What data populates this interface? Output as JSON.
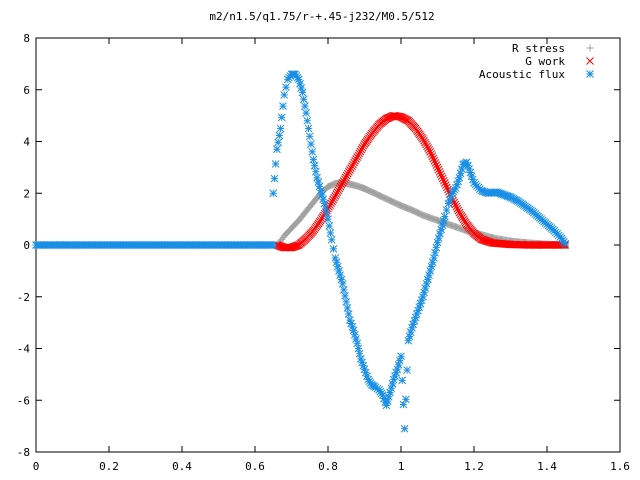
{
  "chart_data": {
    "type": "scatter",
    "title": "m2/n1.5/q1.75/r-+.45-j232/M0.5/512",
    "xlabel": "",
    "ylabel": "",
    "xlim": [
      0,
      1.6
    ],
    "ylim": [
      -8,
      8
    ],
    "x_ticks": [
      0,
      0.2,
      0.4,
      0.6,
      0.8,
      1,
      1.2,
      1.4,
      1.6
    ],
    "x_tick_labels": [
      "0",
      "0.2",
      "0.4",
      "0.6",
      "0.8",
      "1",
      "1.2",
      "1.4",
      "1.6"
    ],
    "y_ticks": [
      -8,
      -6,
      -4,
      -2,
      0,
      2,
      4,
      6,
      8
    ],
    "y_tick_labels": [
      "-8",
      "-6",
      "-4",
      "-2",
      "0",
      "2",
      "4",
      "6",
      "8"
    ],
    "grid": false,
    "legend_position": "top-right",
    "series": [
      {
        "name": "R stress",
        "marker": "plus",
        "color": "#a0a0a0",
        "points": [
          [
            0.66,
            0.0
          ],
          [
            0.67,
            0.15
          ],
          [
            0.68,
            0.35
          ],
          [
            0.7,
            0.65
          ],
          [
            0.72,
            0.95
          ],
          [
            0.74,
            1.3
          ],
          [
            0.76,
            1.65
          ],
          [
            0.78,
            2.0
          ],
          [
            0.8,
            2.25
          ],
          [
            0.82,
            2.38
          ],
          [
            0.84,
            2.4
          ],
          [
            0.86,
            2.35
          ],
          [
            0.88,
            2.28
          ],
          [
            0.9,
            2.18
          ],
          [
            0.92,
            2.05
          ],
          [
            0.95,
            1.85
          ],
          [
            0.98,
            1.65
          ],
          [
            1.0,
            1.52
          ],
          [
            1.03,
            1.35
          ],
          [
            1.06,
            1.15
          ],
          [
            1.1,
            0.95
          ],
          [
            1.14,
            0.75
          ],
          [
            1.18,
            0.55
          ],
          [
            1.22,
            0.4
          ],
          [
            1.26,
            0.25
          ],
          [
            1.3,
            0.15
          ],
          [
            1.35,
            0.08
          ],
          [
            1.4,
            0.03
          ],
          [
            1.45,
            0.0
          ]
        ]
      },
      {
        "name": "G work",
        "marker": "cross",
        "color": "#ff0000",
        "points": [
          [
            0.66,
            0.0
          ],
          [
            0.68,
            -0.1
          ],
          [
            0.7,
            -0.1
          ],
          [
            0.72,
            0.0
          ],
          [
            0.74,
            0.25
          ],
          [
            0.76,
            0.55
          ],
          [
            0.78,
            0.95
          ],
          [
            0.8,
            1.4
          ],
          [
            0.82,
            1.9
          ],
          [
            0.84,
            2.4
          ],
          [
            0.86,
            2.9
          ],
          [
            0.88,
            3.4
          ],
          [
            0.9,
            3.9
          ],
          [
            0.92,
            4.3
          ],
          [
            0.94,
            4.65
          ],
          [
            0.96,
            4.88
          ],
          [
            0.98,
            5.0
          ],
          [
            1.0,
            4.95
          ],
          [
            1.02,
            4.8
          ],
          [
            1.04,
            4.5
          ],
          [
            1.06,
            4.1
          ],
          [
            1.08,
            3.6
          ],
          [
            1.1,
            3.0
          ],
          [
            1.12,
            2.4
          ],
          [
            1.14,
            1.8
          ],
          [
            1.16,
            1.25
          ],
          [
            1.18,
            0.8
          ],
          [
            1.2,
            0.45
          ],
          [
            1.22,
            0.22
          ],
          [
            1.25,
            0.08
          ],
          [
            1.3,
            0.02
          ],
          [
            1.35,
            0.0
          ],
          [
            1.4,
            0.0
          ],
          [
            1.45,
            0.0
          ]
        ]
      },
      {
        "name": "Acoustic flux",
        "marker": "star",
        "color": "#1a8fe6",
        "points": [
          [
            0.0,
            0.0
          ],
          [
            0.1,
            0.0
          ],
          [
            0.2,
            0.0
          ],
          [
            0.3,
            0.0
          ],
          [
            0.4,
            0.0
          ],
          [
            0.5,
            0.0
          ],
          [
            0.6,
            0.0
          ],
          [
            0.65,
            0.0
          ],
          [
            0.65,
            2.0
          ],
          [
            0.66,
            3.7
          ],
          [
            0.67,
            4.5
          ],
          [
            0.68,
            5.8
          ],
          [
            0.69,
            6.4
          ],
          [
            0.7,
            6.6
          ],
          [
            0.71,
            6.6
          ],
          [
            0.72,
            6.4
          ],
          [
            0.73,
            5.9
          ],
          [
            0.74,
            5.1
          ],
          [
            0.75,
            4.2
          ],
          [
            0.76,
            3.3
          ],
          [
            0.77,
            2.6
          ],
          [
            0.78,
            2.1
          ],
          [
            0.79,
            1.6
          ],
          [
            0.8,
            1.0
          ],
          [
            0.81,
            0.2
          ],
          [
            0.82,
            -0.5
          ],
          [
            0.83,
            -1.0
          ],
          [
            0.84,
            -1.5
          ],
          [
            0.85,
            -2.2
          ],
          [
            0.86,
            -2.9
          ],
          [
            0.87,
            -3.3
          ],
          [
            0.88,
            -3.8
          ],
          [
            0.89,
            -4.4
          ],
          [
            0.9,
            -4.8
          ],
          [
            0.91,
            -5.2
          ],
          [
            0.92,
            -5.4
          ],
          [
            0.93,
            -5.5
          ],
          [
            0.94,
            -5.6
          ],
          [
            0.95,
            -5.8
          ],
          [
            0.96,
            -6.2
          ],
          [
            0.97,
            -5.7
          ],
          [
            0.98,
            -5.2
          ],
          [
            0.99,
            -4.8
          ],
          [
            1.0,
            -4.3
          ],
          [
            1.01,
            -7.1
          ],
          [
            1.02,
            -3.7
          ],
          [
            1.03,
            -3.2
          ],
          [
            1.04,
            -2.8
          ],
          [
            1.05,
            -2.4
          ],
          [
            1.06,
            -2.0
          ],
          [
            1.07,
            -1.5
          ],
          [
            1.08,
            -1.0
          ],
          [
            1.09,
            -0.5
          ],
          [
            1.1,
            0.1
          ],
          [
            1.11,
            0.6
          ],
          [
            1.12,
            1.1
          ],
          [
            1.13,
            1.6
          ],
          [
            1.14,
            2.0
          ],
          [
            1.15,
            2.2
          ],
          [
            1.16,
            2.6
          ],
          [
            1.17,
            3.1
          ],
          [
            1.18,
            3.2
          ],
          [
            1.19,
            2.8
          ],
          [
            1.2,
            2.4
          ],
          [
            1.22,
            2.1
          ],
          [
            1.24,
            2.0
          ],
          [
            1.26,
            2.05
          ],
          [
            1.28,
            1.95
          ],
          [
            1.3,
            1.85
          ],
          [
            1.32,
            1.7
          ],
          [
            1.34,
            1.5
          ],
          [
            1.36,
            1.3
          ],
          [
            1.38,
            1.05
          ],
          [
            1.4,
            0.8
          ],
          [
            1.42,
            0.55
          ],
          [
            1.44,
            0.25
          ],
          [
            1.45,
            0.05
          ]
        ]
      }
    ]
  }
}
